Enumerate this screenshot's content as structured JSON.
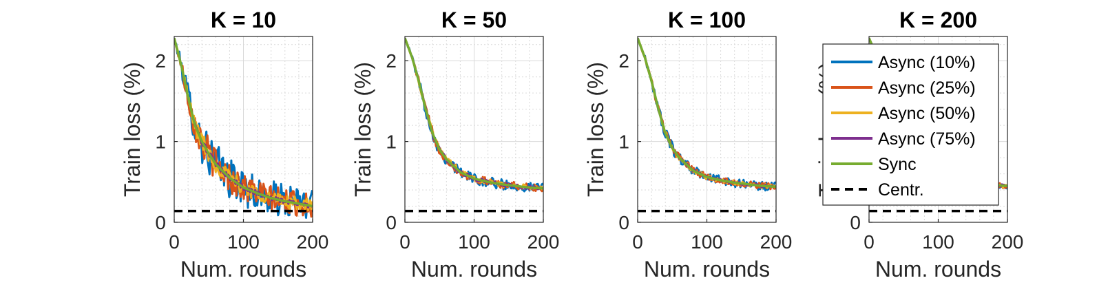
{
  "chart_data": [
    {
      "type": "line",
      "title": "K = 10",
      "xlabel": "Num. rounds",
      "ylabel": "Train loss (%)",
      "xlim": [
        0,
        200
      ],
      "ylim": [
        0,
        2.3
      ],
      "xticks": [
        0,
        100,
        200
      ],
      "yticks": [
        0,
        1,
        2
      ],
      "grid": true,
      "reference": {
        "name": "Centr.",
        "value": 0.14
      },
      "series": [
        {
          "name": "Async (10%)",
          "color": "#0072BD",
          "noise": 0.3,
          "x": [
            0,
            10,
            20,
            30,
            40,
            50,
            60,
            80,
            100,
            120,
            140,
            160,
            180,
            200
          ],
          "y": [
            2.28,
            1.95,
            1.55,
            1.2,
            1.0,
            0.85,
            0.72,
            0.55,
            0.43,
            0.36,
            0.3,
            0.26,
            0.23,
            0.2
          ]
        },
        {
          "name": "Async (25%)",
          "color": "#D95319",
          "noise": 0.22,
          "x": [
            0,
            10,
            20,
            30,
            40,
            50,
            60,
            80,
            100,
            120,
            140,
            160,
            180,
            200
          ],
          "y": [
            2.28,
            1.95,
            1.55,
            1.2,
            1.0,
            0.85,
            0.72,
            0.55,
            0.43,
            0.36,
            0.3,
            0.26,
            0.23,
            0.2
          ]
        },
        {
          "name": "Async (50%)",
          "color": "#EDB120",
          "noise": 0.12,
          "x": [
            0,
            10,
            20,
            30,
            40,
            50,
            60,
            80,
            100,
            120,
            140,
            160,
            180,
            200
          ],
          "y": [
            2.28,
            1.95,
            1.55,
            1.2,
            1.0,
            0.85,
            0.72,
            0.55,
            0.43,
            0.36,
            0.3,
            0.26,
            0.23,
            0.2
          ]
        },
        {
          "name": "Async (75%)",
          "color": "#7E2F8E",
          "noise": 0.04,
          "x": [
            0,
            10,
            20,
            30,
            40,
            50,
            60,
            80,
            100,
            120,
            140,
            160,
            180,
            200
          ],
          "y": [
            2.28,
            1.95,
            1.55,
            1.2,
            1.0,
            0.85,
            0.72,
            0.55,
            0.43,
            0.36,
            0.3,
            0.26,
            0.23,
            0.2
          ]
        },
        {
          "name": "Sync",
          "color": "#77AC30",
          "noise": 0.0,
          "x": [
            0,
            10,
            20,
            30,
            40,
            50,
            60,
            80,
            100,
            120,
            140,
            160,
            180,
            200
          ],
          "y": [
            2.28,
            1.95,
            1.55,
            1.2,
            1.0,
            0.85,
            0.72,
            0.55,
            0.43,
            0.36,
            0.3,
            0.26,
            0.23,
            0.2
          ]
        }
      ]
    },
    {
      "type": "line",
      "title": "K = 50",
      "xlabel": "Num. rounds",
      "ylabel": "Train loss (%)",
      "xlim": [
        0,
        200
      ],
      "ylim": [
        0,
        2.3
      ],
      "xticks": [
        0,
        100,
        200
      ],
      "yticks": [
        0,
        1,
        2
      ],
      "grid": true,
      "reference": {
        "name": "Centr.",
        "value": 0.14
      },
      "series": [
        {
          "name": "Async (10%)",
          "color": "#0072BD",
          "noise": 0.08,
          "x": [
            0,
            10,
            20,
            30,
            40,
            50,
            60,
            80,
            100,
            120,
            140,
            160,
            180,
            200
          ],
          "y": [
            2.28,
            2.05,
            1.75,
            1.4,
            1.1,
            0.9,
            0.78,
            0.62,
            0.54,
            0.5,
            0.47,
            0.45,
            0.43,
            0.42
          ]
        },
        {
          "name": "Async (25%)",
          "color": "#D95319",
          "noise": 0.06,
          "x": [
            0,
            10,
            20,
            30,
            40,
            50,
            60,
            80,
            100,
            120,
            140,
            160,
            180,
            200
          ],
          "y": [
            2.28,
            2.05,
            1.75,
            1.4,
            1.1,
            0.9,
            0.78,
            0.62,
            0.54,
            0.5,
            0.47,
            0.45,
            0.43,
            0.42
          ]
        },
        {
          "name": "Async (50%)",
          "color": "#EDB120",
          "noise": 0.04,
          "x": [
            0,
            10,
            20,
            30,
            40,
            50,
            60,
            80,
            100,
            120,
            140,
            160,
            180,
            200
          ],
          "y": [
            2.28,
            2.05,
            1.75,
            1.4,
            1.1,
            0.9,
            0.78,
            0.62,
            0.54,
            0.5,
            0.47,
            0.45,
            0.43,
            0.42
          ]
        },
        {
          "name": "Async (75%)",
          "color": "#7E2F8E",
          "noise": 0.03,
          "x": [
            0,
            10,
            20,
            30,
            40,
            50,
            60,
            80,
            100,
            120,
            140,
            160,
            180,
            200
          ],
          "y": [
            2.28,
            2.05,
            1.75,
            1.4,
            1.1,
            0.9,
            0.78,
            0.62,
            0.54,
            0.5,
            0.47,
            0.45,
            0.43,
            0.42
          ]
        },
        {
          "name": "Sync",
          "color": "#77AC30",
          "noise": 0.0,
          "x": [
            0,
            10,
            20,
            30,
            40,
            50,
            60,
            80,
            100,
            120,
            140,
            160,
            180,
            200
          ],
          "y": [
            2.28,
            2.05,
            1.75,
            1.4,
            1.1,
            0.9,
            0.78,
            0.62,
            0.54,
            0.5,
            0.47,
            0.45,
            0.43,
            0.42
          ]
        }
      ]
    },
    {
      "type": "line",
      "title": "K = 100",
      "xlabel": "Num. rounds",
      "ylabel": "Train loss (%)",
      "xlim": [
        0,
        200
      ],
      "ylim": [
        0,
        2.3
      ],
      "xticks": [
        0,
        100,
        200
      ],
      "yticks": [
        0,
        1,
        2
      ],
      "grid": true,
      "reference": {
        "name": "Centr.",
        "value": 0.14
      },
      "series": [
        {
          "name": "Async (10%)",
          "color": "#0072BD",
          "noise": 0.07,
          "x": [
            0,
            10,
            20,
            30,
            40,
            50,
            60,
            80,
            100,
            120,
            140,
            160,
            180,
            200
          ],
          "y": [
            2.28,
            2.05,
            1.75,
            1.4,
            1.1,
            0.92,
            0.8,
            0.64,
            0.56,
            0.52,
            0.49,
            0.47,
            0.45,
            0.44
          ]
        },
        {
          "name": "Async (25%)",
          "color": "#D95319",
          "noise": 0.05,
          "x": [
            0,
            10,
            20,
            30,
            40,
            50,
            60,
            80,
            100,
            120,
            140,
            160,
            180,
            200
          ],
          "y": [
            2.28,
            2.05,
            1.75,
            1.4,
            1.1,
            0.92,
            0.8,
            0.64,
            0.56,
            0.52,
            0.49,
            0.47,
            0.45,
            0.44
          ]
        },
        {
          "name": "Async (50%)",
          "color": "#EDB120",
          "noise": 0.03,
          "x": [
            0,
            10,
            20,
            30,
            40,
            50,
            60,
            80,
            100,
            120,
            140,
            160,
            180,
            200
          ],
          "y": [
            2.28,
            2.05,
            1.75,
            1.4,
            1.1,
            0.92,
            0.8,
            0.64,
            0.56,
            0.52,
            0.49,
            0.47,
            0.45,
            0.44
          ]
        },
        {
          "name": "Async (75%)",
          "color": "#7E2F8E",
          "noise": 0.02,
          "x": [
            0,
            10,
            20,
            30,
            40,
            50,
            60,
            80,
            100,
            120,
            140,
            160,
            180,
            200
          ],
          "y": [
            2.28,
            2.05,
            1.75,
            1.4,
            1.1,
            0.92,
            0.8,
            0.64,
            0.56,
            0.52,
            0.49,
            0.47,
            0.45,
            0.44
          ]
        },
        {
          "name": "Sync",
          "color": "#77AC30",
          "noise": 0.0,
          "x": [
            0,
            10,
            20,
            30,
            40,
            50,
            60,
            80,
            100,
            120,
            140,
            160,
            180,
            200
          ],
          "y": [
            2.28,
            2.05,
            1.75,
            1.4,
            1.1,
            0.92,
            0.8,
            0.64,
            0.56,
            0.52,
            0.49,
            0.47,
            0.45,
            0.44
          ]
        }
      ]
    },
    {
      "type": "line",
      "title": "K = 200",
      "xlabel": "Num. rounds",
      "ylabel": "Train loss (%)",
      "xlim": [
        0,
        200
      ],
      "ylim": [
        0,
        2.3
      ],
      "xticks": [
        0,
        100,
        200
      ],
      "yticks": [
        0,
        1,
        2
      ],
      "grid": true,
      "reference": {
        "name": "Centr.",
        "value": 0.14
      },
      "legend": {
        "location": "top-right",
        "entries": [
          "Async (10%)",
          "Async (25%)",
          "Async (50%)",
          "Async (75%)",
          "Sync",
          "Centr."
        ]
      },
      "series": [
        {
          "name": "Async (10%)",
          "color": "#0072BD",
          "noise": 0.04,
          "x": [
            0,
            10,
            20,
            30,
            40,
            50,
            60,
            80,
            100,
            120,
            140,
            160,
            180,
            200
          ],
          "y": [
            2.28,
            2.08,
            1.8,
            1.45,
            1.15,
            0.95,
            0.82,
            0.66,
            0.58,
            0.53,
            0.5,
            0.48,
            0.46,
            0.45
          ]
        },
        {
          "name": "Async (25%)",
          "color": "#D95319",
          "noise": 0.05,
          "x": [
            0,
            10,
            20,
            30,
            40,
            50,
            60,
            80,
            100,
            120,
            140,
            160,
            180,
            200
          ],
          "y": [
            2.28,
            2.08,
            1.8,
            1.45,
            1.15,
            0.95,
            0.82,
            0.66,
            0.58,
            0.53,
            0.5,
            0.48,
            0.46,
            0.45
          ]
        },
        {
          "name": "Async (50%)",
          "color": "#EDB120",
          "noise": 0.03,
          "x": [
            0,
            10,
            20,
            30,
            40,
            50,
            60,
            80,
            100,
            120,
            140,
            160,
            180,
            200
          ],
          "y": [
            2.28,
            2.08,
            1.8,
            1.45,
            1.15,
            0.95,
            0.82,
            0.66,
            0.58,
            0.53,
            0.5,
            0.48,
            0.46,
            0.45
          ]
        },
        {
          "name": "Async (75%)",
          "color": "#7E2F8E",
          "noise": 0.02,
          "x": [
            0,
            10,
            20,
            30,
            40,
            50,
            60,
            80,
            100,
            120,
            140,
            160,
            180,
            200
          ],
          "y": [
            2.28,
            2.08,
            1.8,
            1.45,
            1.15,
            0.95,
            0.82,
            0.66,
            0.58,
            0.53,
            0.5,
            0.48,
            0.46,
            0.45
          ]
        },
        {
          "name": "Sync",
          "color": "#77AC30",
          "noise": 0.0,
          "x": [
            0,
            10,
            20,
            30,
            40,
            50,
            60,
            80,
            100,
            120,
            140,
            160,
            180,
            200
          ],
          "y": [
            2.28,
            2.08,
            1.8,
            1.45,
            1.15,
            0.95,
            0.82,
            0.66,
            0.58,
            0.53,
            0.5,
            0.48,
            0.46,
            0.45
          ]
        }
      ]
    }
  ]
}
